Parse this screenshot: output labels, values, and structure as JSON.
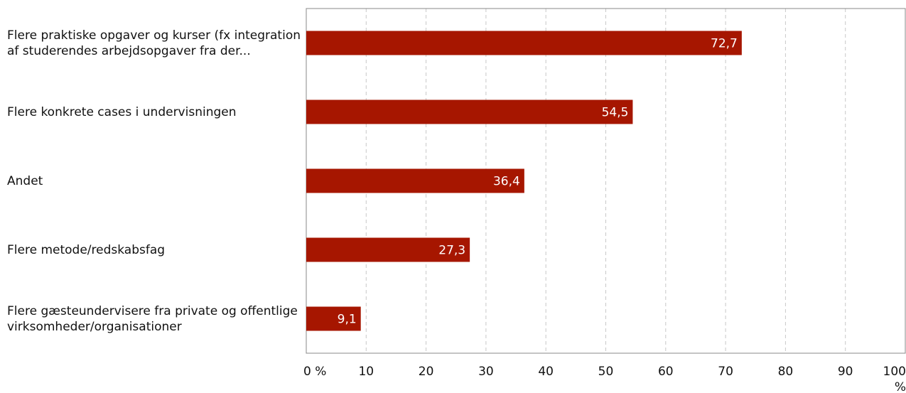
{
  "chart_data": {
    "type": "bar",
    "orientation": "horizontal",
    "categories": [
      "Flere praktiske opgaver og kurser (fx integration af studerendes arbejdsopgaver fra der...",
      "Flere konkrete cases i undervisningen",
      "Andet",
      "Flere metode/redskabsfag",
      "Flere gæsteundervisere fra private og offentlige virksomheder/organisationer"
    ],
    "values": [
      72.7,
      54.5,
      36.4,
      27.3,
      9.1
    ],
    "value_labels": [
      "72,7",
      "54,5",
      "36,4",
      "27,3",
      "9,1"
    ],
    "color": "#a61600",
    "xlim": [
      0,
      100
    ],
    "xticks": [
      {
        "value": 0,
        "label": "0 %"
      },
      10,
      20,
      30,
      40,
      50,
      60,
      70,
      80,
      90,
      {
        "value": 100,
        "label": "100 %"
      }
    ],
    "grid": true
  }
}
